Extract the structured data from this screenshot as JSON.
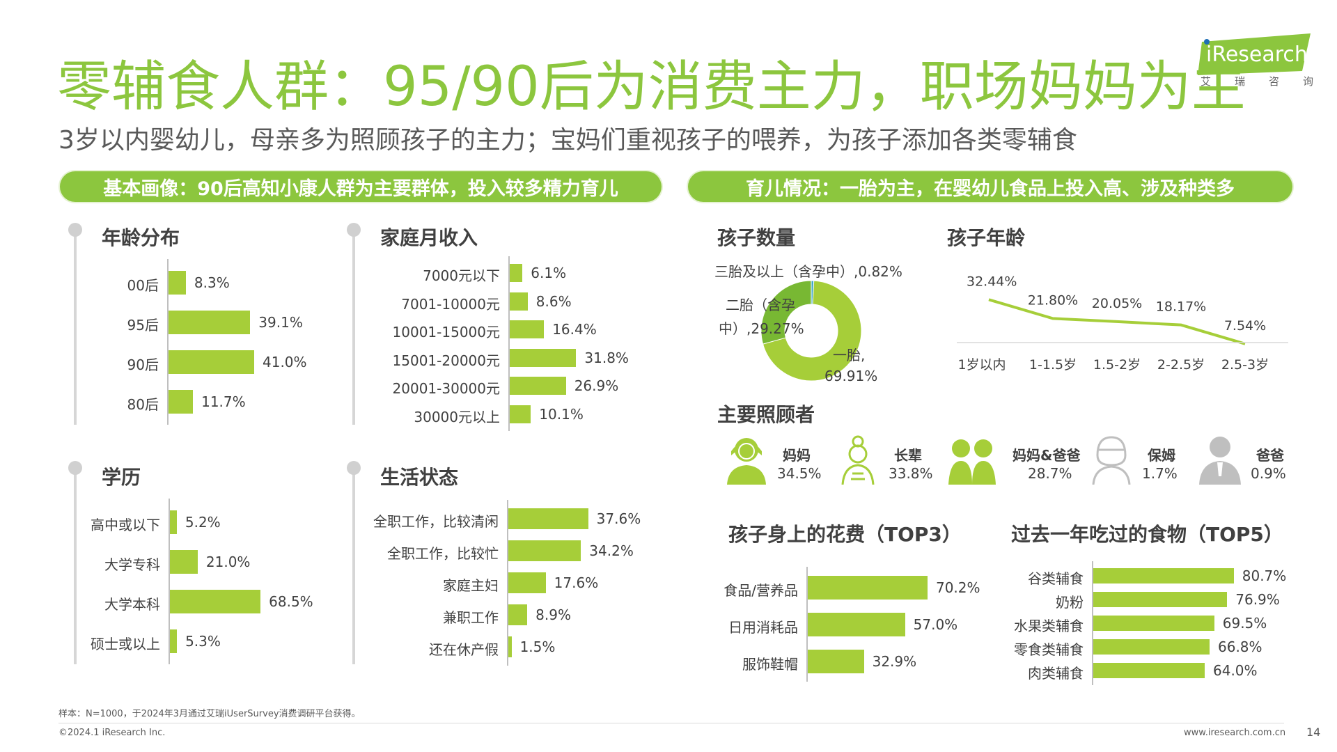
{
  "title": "零辅食人群：95/90后为消费主力，职场妈妈为主",
  "subtitle": "3岁以内婴幼儿，母亲多为照顾孩子的主力；宝妈们重视孩子的喂养，为孩子添加各类零辅食",
  "logo": {
    "brand": "iResearch",
    "cn": [
      "艾",
      "瑞",
      "咨",
      "询"
    ]
  },
  "left_banner": "基本画像：90后高知小康人群为主要群体，投入较多精力育儿",
  "right_banner": "育儿情况：一胎为主，在婴幼儿食品上投入高、涉及种类多",
  "accent_color": "#a6ce39",
  "chart_data": [
    {
      "id": "age",
      "type": "bar",
      "title": "年龄分布",
      "categories": [
        "00后",
        "95后",
        "90后",
        "80后"
      ],
      "values": [
        8.3,
        39.1,
        41.0,
        11.7
      ],
      "labels": [
        "8.3%",
        "39.1%",
        "41.0%",
        "11.7%"
      ]
    },
    {
      "id": "income",
      "type": "bar",
      "title": "家庭月收入",
      "categories": [
        "7000元以下",
        "7001-10000元",
        "10001-15000元",
        "15001-20000元",
        "20001-30000元",
        "30000元以上"
      ],
      "values": [
        6.1,
        8.6,
        16.4,
        31.8,
        26.9,
        10.1
      ],
      "labels": [
        "6.1%",
        "8.6%",
        "16.4%",
        "31.8%",
        "26.9%",
        "10.1%"
      ]
    },
    {
      "id": "edu",
      "type": "bar",
      "title": "学历",
      "categories": [
        "高中或以下",
        "大学专科",
        "大学本科",
        "硕士或以上"
      ],
      "values": [
        5.2,
        21.0,
        68.5,
        5.3
      ],
      "labels": [
        "5.2%",
        "21.0%",
        "68.5%",
        "5.3%"
      ]
    },
    {
      "id": "life",
      "type": "bar",
      "title": "生活状态",
      "categories": [
        "全职工作，比较清闲",
        "全职工作，比较忙",
        "家庭主妇",
        "兼职工作",
        "还在休产假"
      ],
      "values": [
        37.6,
        34.2,
        17.6,
        8.9,
        1.5
      ],
      "labels": [
        "37.6%",
        "34.2%",
        "17.6%",
        "8.9%",
        "1.5%"
      ]
    },
    {
      "id": "kids",
      "type": "pie",
      "title": "孩子数量",
      "slices": [
        {
          "label": "一胎,",
          "value": 69.91,
          "text": "69.91%",
          "color": "#a6ce39"
        },
        {
          "label": "二胎（含孕",
          "label2": "中）,",
          "value": 29.27,
          "text": "29.27%",
          "color": "#78b833"
        },
        {
          "label": "三胎及以上（含孕中）,",
          "value": 0.82,
          "text": "0.82%",
          "color": "#3fa7c9"
        }
      ]
    },
    {
      "id": "kidage",
      "type": "line",
      "title": "孩子年龄",
      "categories": [
        "1岁以内",
        "1-1.5岁",
        "1.5-2岁",
        "2-2.5岁",
        "2.5-3岁"
      ],
      "values": [
        32.44,
        21.8,
        20.05,
        18.17,
        7.54
      ],
      "labels": [
        "32.44%",
        "21.80%",
        "20.05%",
        "18.17%",
        "7.54%"
      ]
    },
    {
      "id": "spend",
      "type": "bar",
      "title": "孩子身上的花费（TOP3）",
      "categories": [
        "食品/营养品",
        "日用消耗品",
        "服饰鞋帽"
      ],
      "values": [
        70.2,
        57.0,
        32.9
      ],
      "labels": [
        "70.2%",
        "57.0%",
        "32.9%"
      ]
    },
    {
      "id": "food",
      "type": "bar",
      "title": "过去一年吃过的食物（TOP5）",
      "categories": [
        "谷类辅食",
        "奶粉",
        "水果类辅食",
        "零食类辅食",
        "肉类辅食"
      ],
      "values": [
        80.7,
        76.9,
        69.5,
        66.8,
        64.0
      ],
      "labels": [
        "80.7%",
        "76.9%",
        "69.5%",
        "66.8%",
        "64.0%"
      ]
    }
  ],
  "caregivers": {
    "title": "主要照顾者",
    "items": [
      {
        "name": "妈妈",
        "value": "34.5%",
        "icon": "mother-icon",
        "color": "#a6ce39"
      },
      {
        "name": "长辈",
        "value": "33.8%",
        "icon": "elder-icon",
        "color": "#a6ce39"
      },
      {
        "name": "妈妈&爸爸",
        "value": "28.7%",
        "icon": "parents-icon",
        "color": "#a6ce39"
      },
      {
        "name": "保姆",
        "value": "1.7%",
        "icon": "nanny-icon",
        "color": "#bfbfbf"
      },
      {
        "name": "爸爸",
        "value": "0.9%",
        "icon": "father-icon",
        "color": "#bfbfbf"
      }
    ]
  },
  "footnote": "样本：N=1000，于2024年3月通过艾瑞iUserSurvey消费调研平台获得。",
  "copyright": "©2024.1 iResearch Inc.",
  "website": "www.iresearch.com.cn",
  "page_number": "14"
}
